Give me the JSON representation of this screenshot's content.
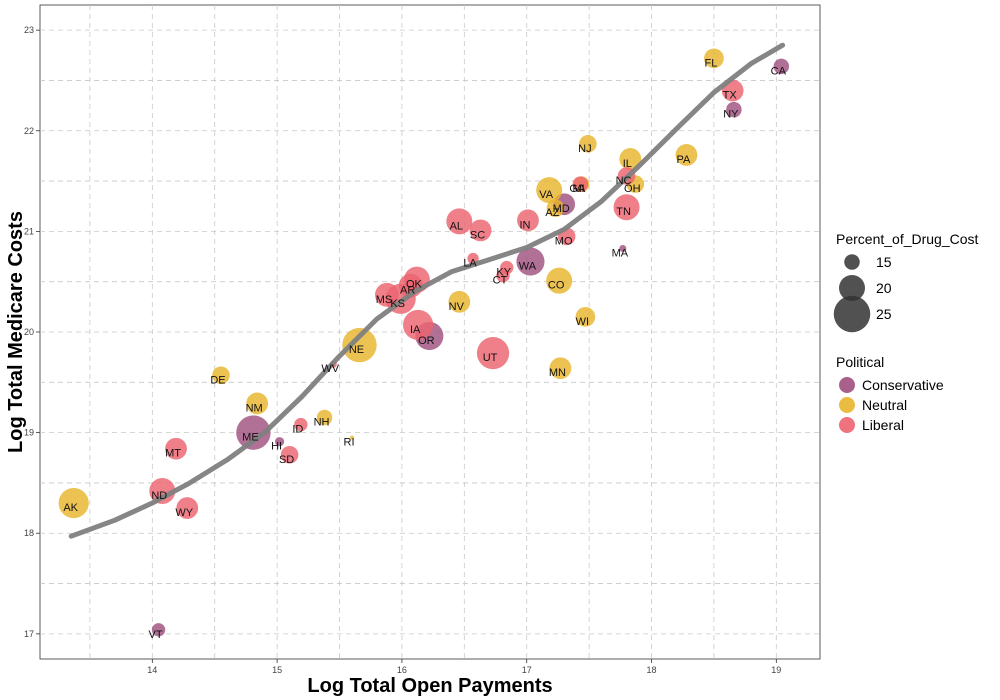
{
  "chart_data": {
    "type": "scatter",
    "xlabel": "Log Total Open Payments",
    "ylabel": "Log Total Medicare Costs",
    "xlim": [
      13.1,
      19.35
    ],
    "ylim": [
      16.75,
      23.25
    ],
    "x_ticks": [
      14,
      15,
      16,
      17,
      18,
      19
    ],
    "y_ticks": [
      17,
      18,
      19,
      20,
      21,
      22,
      23
    ],
    "grid": true,
    "legend_position": "right",
    "colors": {
      "Conservative": "#a0507e",
      "Neutral": "#e8b52c",
      "Liberal": "#ec6470",
      "smooth": "#7f7f7f"
    },
    "size_legend": {
      "title": "Percent_of_Drug_Cost",
      "values": [
        15,
        20,
        25
      ]
    },
    "color_legend": {
      "title": "Political",
      "entries": [
        "Conservative",
        "Neutral",
        "Liberal"
      ]
    },
    "smooth": {
      "x": [
        13.35,
        13.7,
        14.0,
        14.3,
        14.6,
        14.9,
        15.2,
        15.5,
        15.8,
        16.1,
        16.4,
        16.7,
        17.0,
        17.3,
        17.6,
        17.9,
        18.2,
        18.5,
        18.8,
        19.05
      ],
      "y": [
        17.97,
        18.13,
        18.3,
        18.5,
        18.73,
        19.0,
        19.36,
        19.76,
        20.13,
        20.4,
        20.6,
        20.72,
        20.84,
        21.02,
        21.3,
        21.65,
        22.02,
        22.38,
        22.67,
        22.85
      ]
    },
    "points": [
      {
        "label": "CA",
        "x": 19.04,
        "y": 22.64,
        "pct": 15,
        "political": "Conservative"
      },
      {
        "label": "FL",
        "x": 18.5,
        "y": 22.72,
        "pct": 17,
        "political": "Neutral"
      },
      {
        "label": "TX",
        "x": 18.65,
        "y": 22.4,
        "pct": 18,
        "political": "Liberal"
      },
      {
        "label": "NY",
        "x": 18.66,
        "y": 22.21,
        "pct": 15,
        "political": "Conservative"
      },
      {
        "label": "PA",
        "x": 18.28,
        "y": 21.76,
        "pct": 18,
        "political": "Neutral"
      },
      {
        "label": "NJ",
        "x": 17.49,
        "y": 21.87,
        "pct": 16,
        "political": "Neutral"
      },
      {
        "label": "IL",
        "x": 17.83,
        "y": 21.72,
        "pct": 18,
        "political": "Neutral"
      },
      {
        "label": "NC",
        "x": 17.8,
        "y": 21.55,
        "pct": 16,
        "political": "Liberal"
      },
      {
        "label": "OH",
        "x": 17.87,
        "y": 21.47,
        "pct": 16,
        "political": "Neutral"
      },
      {
        "label": "TN",
        "x": 17.8,
        "y": 21.24,
        "pct": 20,
        "political": "Liberal"
      },
      {
        "label": "GA",
        "x": 17.43,
        "y": 21.47,
        "pct": 15,
        "political": "Liberal"
      },
      {
        "label": "MI",
        "x": 17.44,
        "y": 21.47,
        "pct": 15,
        "political": "Neutral"
      },
      {
        "label": "VA",
        "x": 17.18,
        "y": 21.41,
        "pct": 20,
        "political": "Neutral"
      },
      {
        "label": "MD",
        "x": 17.3,
        "y": 21.27,
        "pct": 18,
        "political": "Conservative"
      },
      {
        "label": "AZ",
        "x": 17.23,
        "y": 21.23,
        "pct": 16,
        "political": "Neutral"
      },
      {
        "label": "IN",
        "x": 17.01,
        "y": 21.11,
        "pct": 18,
        "political": "Liberal"
      },
      {
        "label": "MO",
        "x": 17.32,
        "y": 20.95,
        "pct": 16,
        "political": "Liberal"
      },
      {
        "label": "MA",
        "x": 17.77,
        "y": 20.83,
        "pct": 11,
        "political": "Conservative"
      },
      {
        "label": "AL",
        "x": 16.46,
        "y": 21.1,
        "pct": 20,
        "political": "Liberal"
      },
      {
        "label": "SC",
        "x": 16.63,
        "y": 21.01,
        "pct": 18,
        "political": "Liberal"
      },
      {
        "label": "LA",
        "x": 16.57,
        "y": 20.73,
        "pct": 13,
        "political": "Liberal"
      },
      {
        "label": "KY",
        "x": 16.84,
        "y": 20.64,
        "pct": 14,
        "political": "Liberal"
      },
      {
        "label": "CT",
        "x": 16.81,
        "y": 20.56,
        "pct": 14,
        "political": "Liberal"
      },
      {
        "label": "WA",
        "x": 17.03,
        "y": 20.7,
        "pct": 21,
        "political": "Conservative"
      },
      {
        "label": "CO",
        "x": 17.26,
        "y": 20.51,
        "pct": 20,
        "political": "Neutral"
      },
      {
        "label": "WI",
        "x": 17.47,
        "y": 20.15,
        "pct": 17,
        "political": "Neutral"
      },
      {
        "label": "OK",
        "x": 16.12,
        "y": 20.52,
        "pct": 20,
        "political": "Liberal"
      },
      {
        "label": "AR",
        "x": 16.07,
        "y": 20.46,
        "pct": 19,
        "political": "Liberal"
      },
      {
        "label": "MS",
        "x": 15.88,
        "y": 20.37,
        "pct": 19,
        "political": "Liberal"
      },
      {
        "label": "KS",
        "x": 15.99,
        "y": 20.33,
        "pct": 22,
        "political": "Liberal"
      },
      {
        "label": "NV",
        "x": 16.46,
        "y": 20.3,
        "pct": 18,
        "political": "Neutral"
      },
      {
        "label": "IA",
        "x": 16.13,
        "y": 20.07,
        "pct": 22,
        "political": "Liberal"
      },
      {
        "label": "OR",
        "x": 16.22,
        "y": 19.96,
        "pct": 21,
        "political": "Conservative"
      },
      {
        "label": "UT",
        "x": 16.73,
        "y": 19.79,
        "pct": 23,
        "political": "Liberal"
      },
      {
        "label": "MN",
        "x": 17.27,
        "y": 19.64,
        "pct": 18,
        "political": "Neutral"
      },
      {
        "label": "NE",
        "x": 15.66,
        "y": 19.87,
        "pct": 24,
        "political": "Neutral"
      },
      {
        "label": "WV",
        "x": 15.45,
        "y": 19.68,
        "pct": 11,
        "political": "Liberal"
      },
      {
        "label": "DE",
        "x": 14.55,
        "y": 19.57,
        "pct": 16,
        "political": "Neutral"
      },
      {
        "label": "NM",
        "x": 14.84,
        "y": 19.29,
        "pct": 18,
        "political": "Neutral"
      },
      {
        "label": "NH",
        "x": 15.38,
        "y": 19.15,
        "pct": 15,
        "political": "Neutral"
      },
      {
        "label": "ID",
        "x": 15.19,
        "y": 19.08,
        "pct": 14,
        "political": "Liberal"
      },
      {
        "label": "ME",
        "x": 14.81,
        "y": 19.0,
        "pct": 24,
        "political": "Conservative"
      },
      {
        "label": "RI",
        "x": 15.6,
        "y": 18.95,
        "pct": 8,
        "political": "Neutral"
      },
      {
        "label": "HI",
        "x": 15.02,
        "y": 18.91,
        "pct": 12,
        "political": "Conservative"
      },
      {
        "label": "SD",
        "x": 15.1,
        "y": 18.78,
        "pct": 16,
        "political": "Liberal"
      },
      {
        "label": "MT",
        "x": 14.19,
        "y": 18.84,
        "pct": 18,
        "political": "Liberal"
      },
      {
        "label": "ND",
        "x": 14.08,
        "y": 18.42,
        "pct": 20,
        "political": "Liberal"
      },
      {
        "label": "WY",
        "x": 14.28,
        "y": 18.25,
        "pct": 18,
        "political": "Liberal"
      },
      {
        "label": "AK",
        "x": 13.37,
        "y": 18.3,
        "pct": 22,
        "political": "Neutral"
      },
      {
        "label": "VT",
        "x": 14.05,
        "y": 17.04,
        "pct": 14,
        "political": "Conservative"
      }
    ]
  }
}
